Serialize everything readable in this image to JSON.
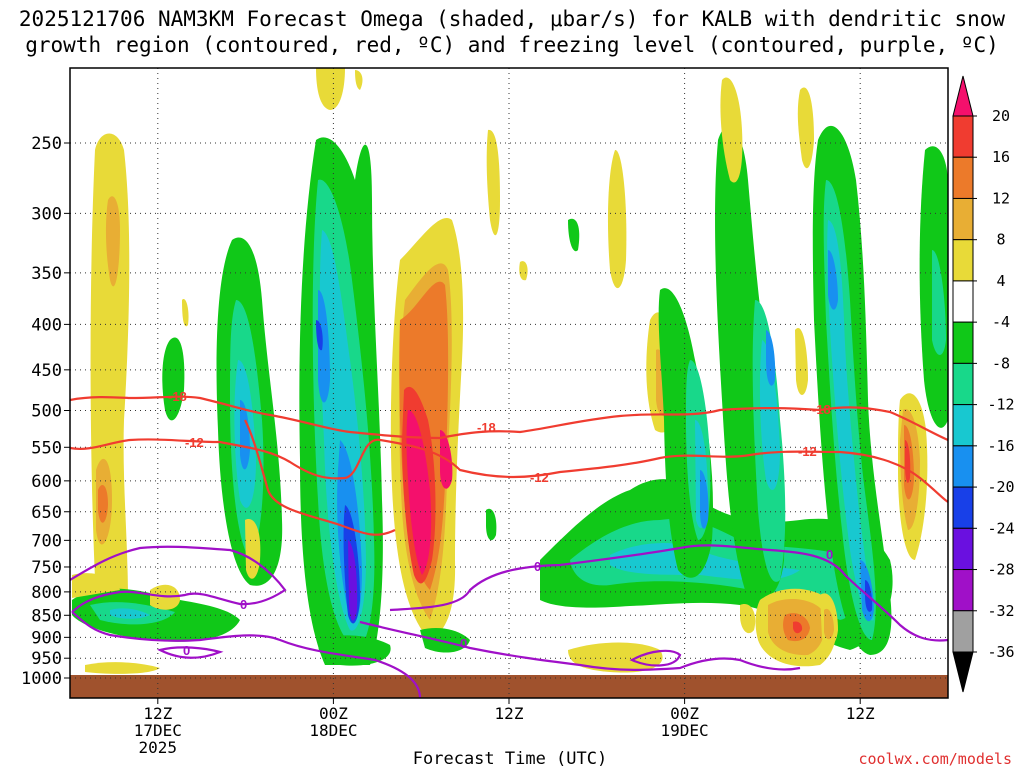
{
  "chart_data": {
    "type": "heatmap",
    "title_line1": "2025121706 NAM3KM Forecast Omega (shaded, μbar/s) for KALB with dendritic snow",
    "title_line2": "growth region (contoured, red, ºC) and freezing level (contoured, purple, ºC)",
    "xlabel": "Forecast Time (UTC)",
    "watermark": "coolwx.com/models",
    "x_ticks": [
      {
        "l1": "12Z",
        "l2": "17DEC",
        "l3": "2025",
        "hour": 6
      },
      {
        "l1": "00Z",
        "l2": "18DEC",
        "l3": "",
        "hour": 18
      },
      {
        "l1": "12Z",
        "l2": "",
        "l3": "",
        "hour": 30
      },
      {
        "l1": "00Z",
        "l2": "19DEC",
        "l3": "",
        "hour": 42
      },
      {
        "l1": "12Z",
        "l2": "",
        "l3": "",
        "hour": 54
      }
    ],
    "x_range_hours": [
      0,
      60
    ],
    "y_ticks": [
      250,
      300,
      350,
      400,
      450,
      500,
      550,
      600,
      650,
      700,
      750,
      800,
      850,
      900,
      950,
      1000
    ],
    "colorbar": {
      "levels": [
        "20",
        "16",
        "12",
        "8",
        "4",
        "-4",
        "-8",
        "-12",
        "-16",
        "-20",
        "-24",
        "-28",
        "-32",
        "-36"
      ],
      "colors": [
        "#f4106c",
        "#f03c30",
        "#ec7a2a",
        "#e8ae34",
        "#e8da38",
        "#ffffff",
        "#10c818",
        "#18d88a",
        "#18c8d0",
        "#1890f0",
        "#1840e8",
        "#6a10e0",
        "#a010c8",
        "#a0a0a0",
        "#000000"
      ]
    },
    "contours": {
      "red": [
        {
          "label": "-18",
          "level": -18
        },
        {
          "label": "-12",
          "level": -12
        }
      ],
      "purple": [
        {
          "label": "0",
          "level": 0
        }
      ]
    },
    "omega_cells": [
      {
        "hour": 3,
        "p": 320,
        "value": 6
      },
      {
        "hour": 3,
        "p": 650,
        "value": 8
      },
      {
        "hour": 9,
        "p": 520,
        "value": -12
      },
      {
        "hour": 12,
        "p": 400,
        "value": -8
      },
      {
        "hour": 17,
        "p": 400,
        "value": -24
      },
      {
        "hour": 19,
        "p": 780,
        "value": -30
      },
      {
        "hour": 24,
        "p": 560,
        "value": 22
      },
      {
        "hour": 25,
        "p": 400,
        "value": 12
      },
      {
        "hour": 39,
        "p": 430,
        "value": 8
      },
      {
        "hour": 43,
        "p": 650,
        "value": -18
      },
      {
        "hour": 48,
        "p": 400,
        "value": -22
      },
      {
        "hour": 52,
        "p": 880,
        "value": 14
      },
      {
        "hour": 55,
        "p": 820,
        "value": -22
      },
      {
        "hour": 57,
        "p": 550,
        "value": 14
      }
    ]
  }
}
